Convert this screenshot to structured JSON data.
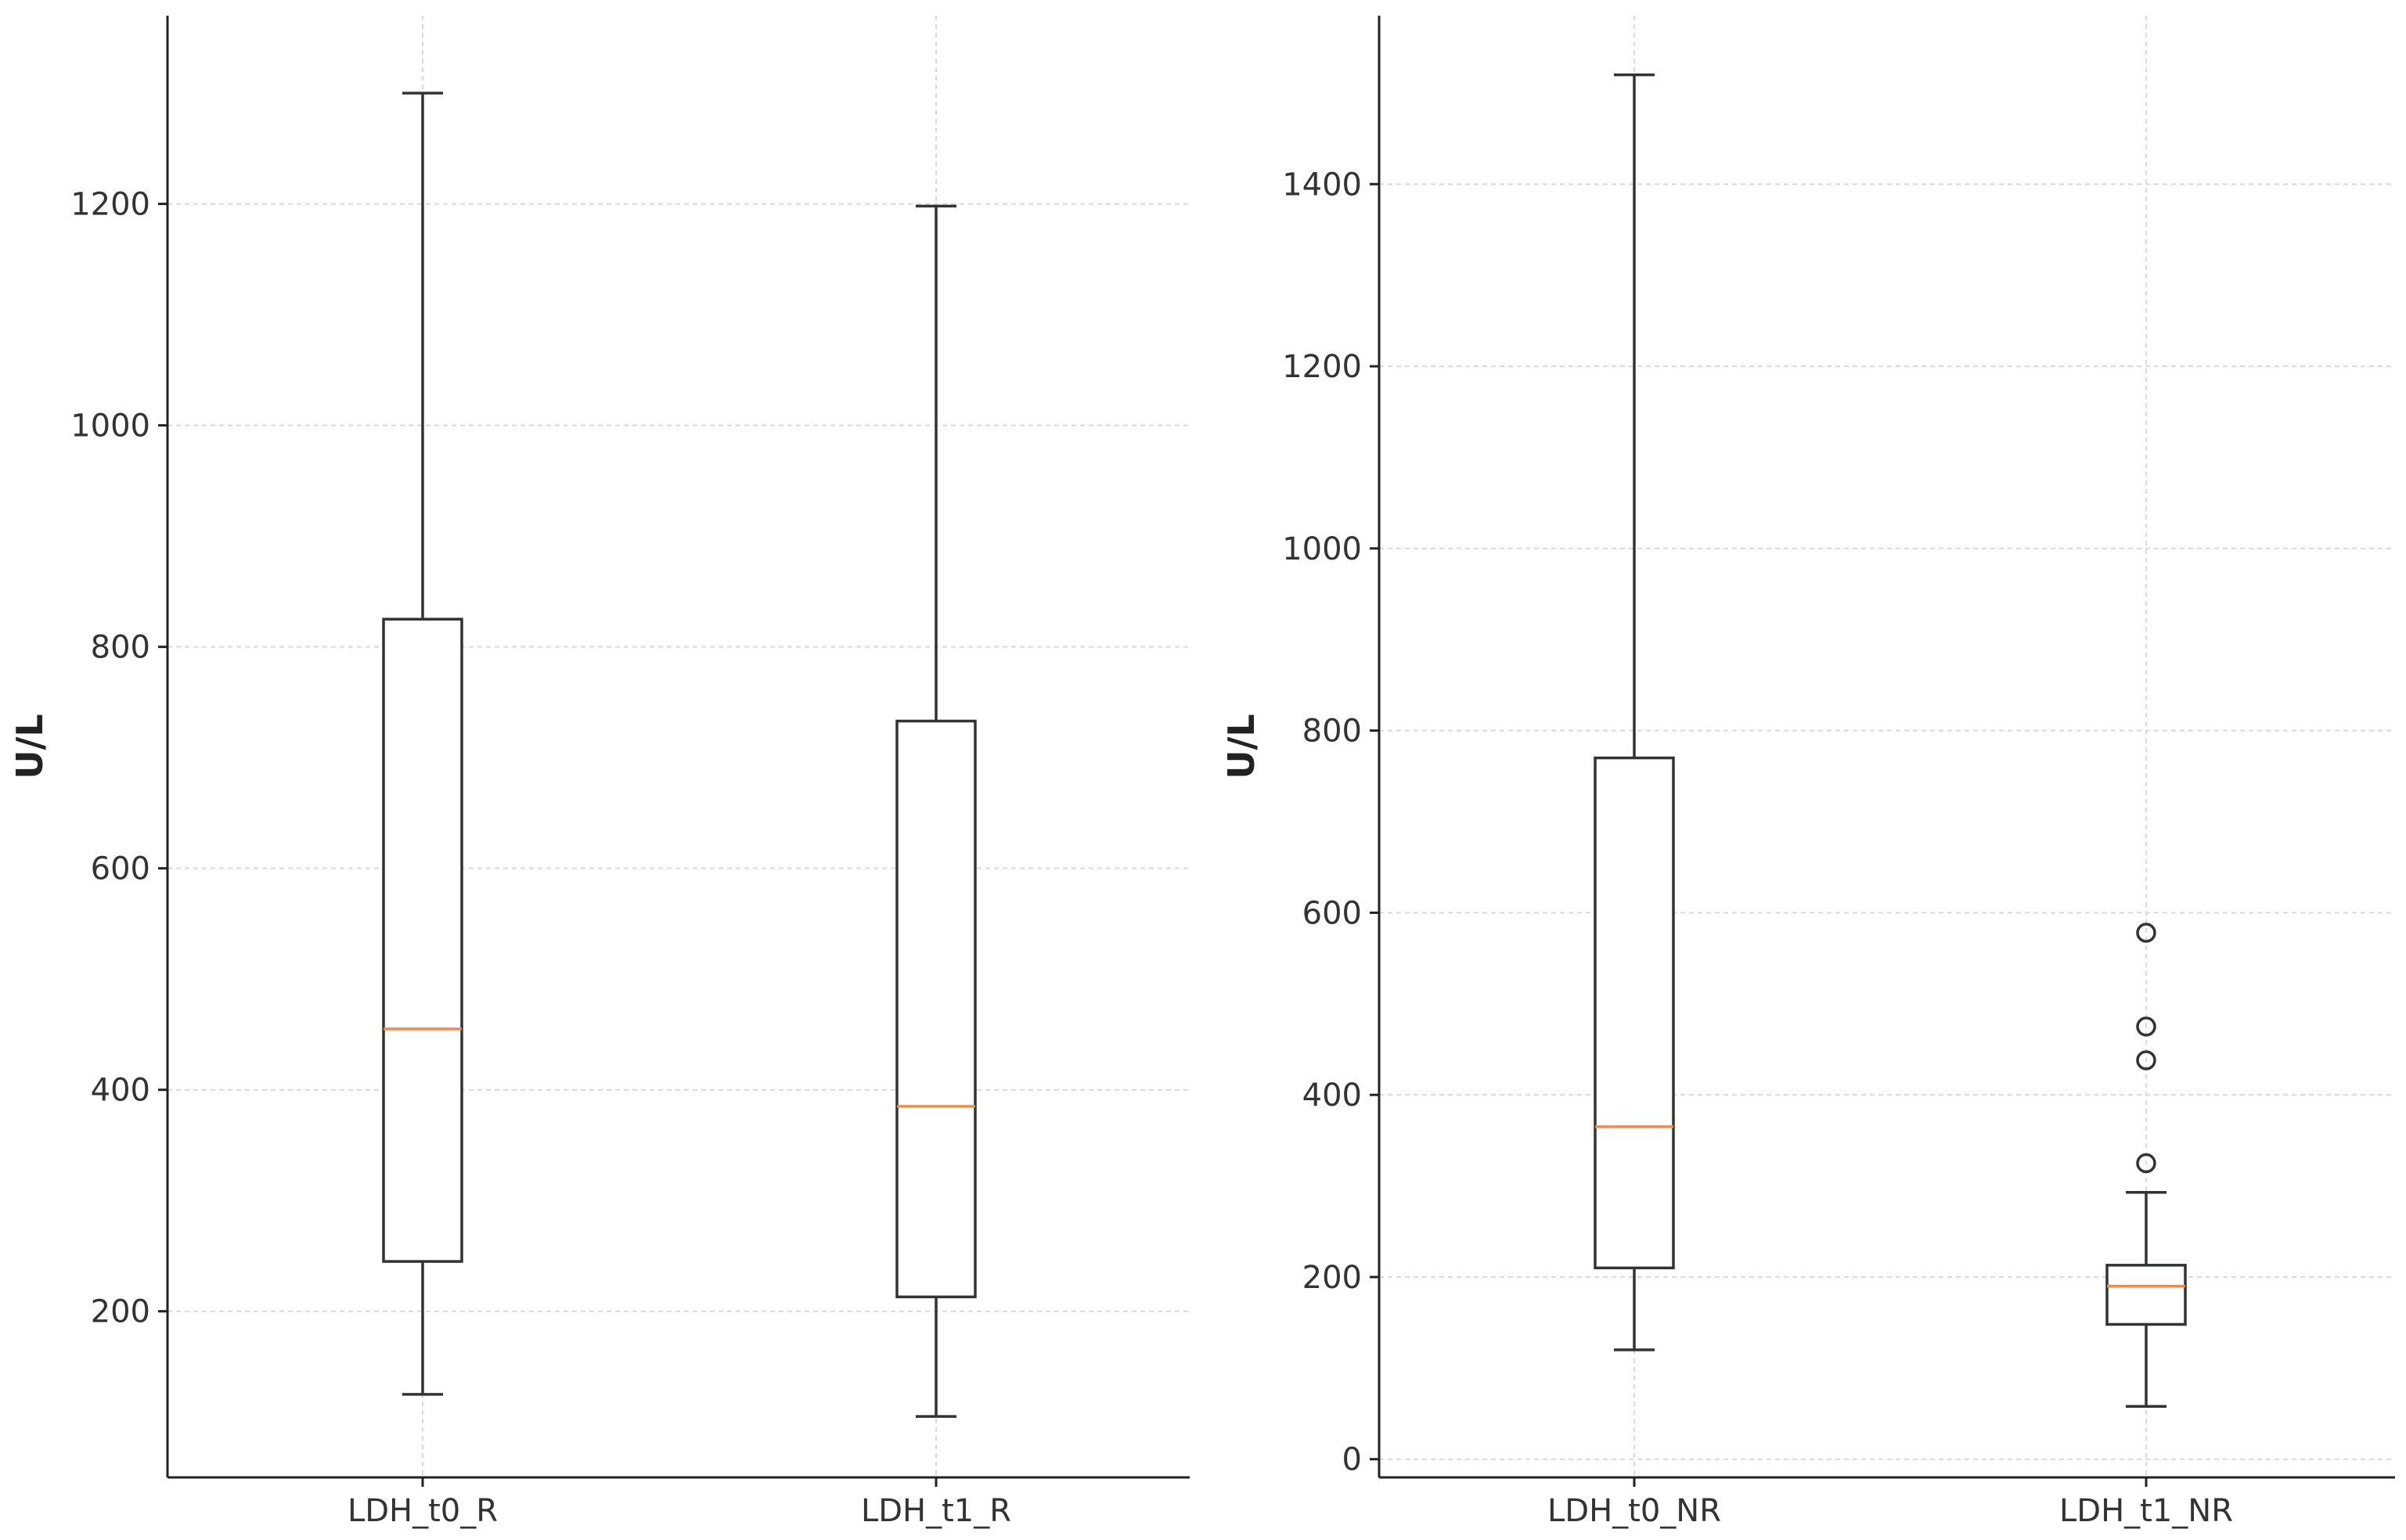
{
  "chart_data": [
    {
      "type": "boxplot",
      "ylabel": "U/L",
      "ylim": [
        50,
        1370
      ],
      "yticks": [
        200,
        400,
        600,
        800,
        1000,
        1200
      ],
      "grid": true,
      "categories": [
        "LDH_t0_R",
        "LDH_t1_R"
      ],
      "boxes": [
        {
          "label": "LDH_t0_R",
          "whisker_low": 125,
          "q1": 245,
          "median": 455,
          "q3": 825,
          "whisker_high": 1300,
          "outliers": []
        },
        {
          "label": "LDH_t1_R",
          "whisker_low": 105,
          "q1": 213,
          "median": 385,
          "q3": 733,
          "whisker_high": 1198,
          "outliers": []
        }
      ]
    },
    {
      "type": "boxplot",
      "ylabel": "U/L",
      "ylim": [
        -20,
        1585
      ],
      "yticks": [
        0,
        200,
        400,
        600,
        800,
        1000,
        1200,
        1400
      ],
      "grid": true,
      "categories": [
        "LDH_t0_NR",
        "LDH_t1_NR"
      ],
      "boxes": [
        {
          "label": "LDH_t0_NR",
          "whisker_low": 120,
          "q1": 210,
          "median": 365,
          "q3": 770,
          "whisker_high": 1520,
          "outliers": []
        },
        {
          "label": "LDH_t1_NR",
          "whisker_low": 58,
          "q1": 148,
          "median": 190,
          "q3": 213,
          "whisker_high": 293,
          "outliers": [
            578,
            475,
            438,
            325
          ]
        }
      ]
    }
  ],
  "colors": {
    "axis": "#222222",
    "box": "#333333",
    "median": "#f28a4a",
    "grid": "#d9d9d9",
    "tick_text": "#333333"
  }
}
